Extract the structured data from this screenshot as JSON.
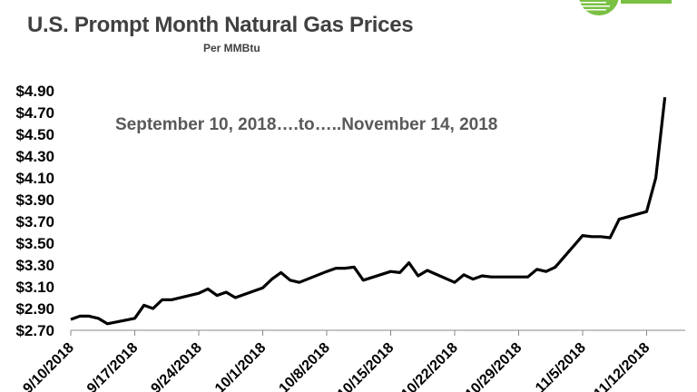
{
  "chart_data": {
    "type": "line",
    "title": "U.S. Prompt Month Natural Gas Prices",
    "subtitle": "Per MMBtu",
    "annotation": "September 10, 2018….to…..November 14, 2018",
    "xlabel": "",
    "ylabel": "",
    "ylim": [
      2.7,
      4.9
    ],
    "yticks": [
      "$2.70",
      "$2.90",
      "$3.10",
      "$3.30",
      "$3.50",
      "$3.70",
      "$3.90",
      "$4.10",
      "$4.30",
      "$4.50",
      "$4.70",
      "$4.90"
    ],
    "xticks": [
      "9/10/2018",
      "9/17/2018",
      "9/24/2018",
      "10/1/2018",
      "10/8/2018",
      "10/15/2018",
      "10/22/2018",
      "10/29/2018",
      "11/5/2018",
      "11/12/2018"
    ],
    "grid": false,
    "line_color": "#000000",
    "logo_color": "#7ac143",
    "series": [
      {
        "x": [
          "2018-09-10",
          "2018-09-11",
          "2018-09-12",
          "2018-09-13",
          "2018-09-14",
          "2018-09-17",
          "2018-09-18",
          "2018-09-19",
          "2018-09-20",
          "2018-09-21",
          "2018-09-24",
          "2018-09-25",
          "2018-09-26",
          "2018-09-27",
          "2018-09-28",
          "2018-10-01",
          "2018-10-02",
          "2018-10-03",
          "2018-10-04",
          "2018-10-05",
          "2018-10-08",
          "2018-10-09",
          "2018-10-10",
          "2018-10-11",
          "2018-10-12",
          "2018-10-15",
          "2018-10-16",
          "2018-10-17",
          "2018-10-18",
          "2018-10-19",
          "2018-10-22",
          "2018-10-23",
          "2018-10-24",
          "2018-10-25",
          "2018-10-26",
          "2018-10-29",
          "2018-10-30",
          "2018-10-31",
          "2018-11-01",
          "2018-11-02",
          "2018-11-05",
          "2018-11-06",
          "2018-11-07",
          "2018-11-08",
          "2018-11-09",
          "2018-11-12",
          "2018-11-13",
          "2018-11-14"
        ],
        "values": [
          2.8,
          2.83,
          2.83,
          2.81,
          2.76,
          2.81,
          2.93,
          2.9,
          2.98,
          2.98,
          3.04,
          3.08,
          3.02,
          3.05,
          3.0,
          3.09,
          3.17,
          3.23,
          3.16,
          3.14,
          3.24,
          3.27,
          3.27,
          3.28,
          3.16,
          3.24,
          3.23,
          3.32,
          3.2,
          3.25,
          3.14,
          3.21,
          3.17,
          3.2,
          3.19,
          3.19,
          3.19,
          3.26,
          3.24,
          3.28,
          3.57,
          3.56,
          3.56,
          3.55,
          3.72,
          3.79,
          4.1,
          4.84
        ]
      }
    ]
  }
}
